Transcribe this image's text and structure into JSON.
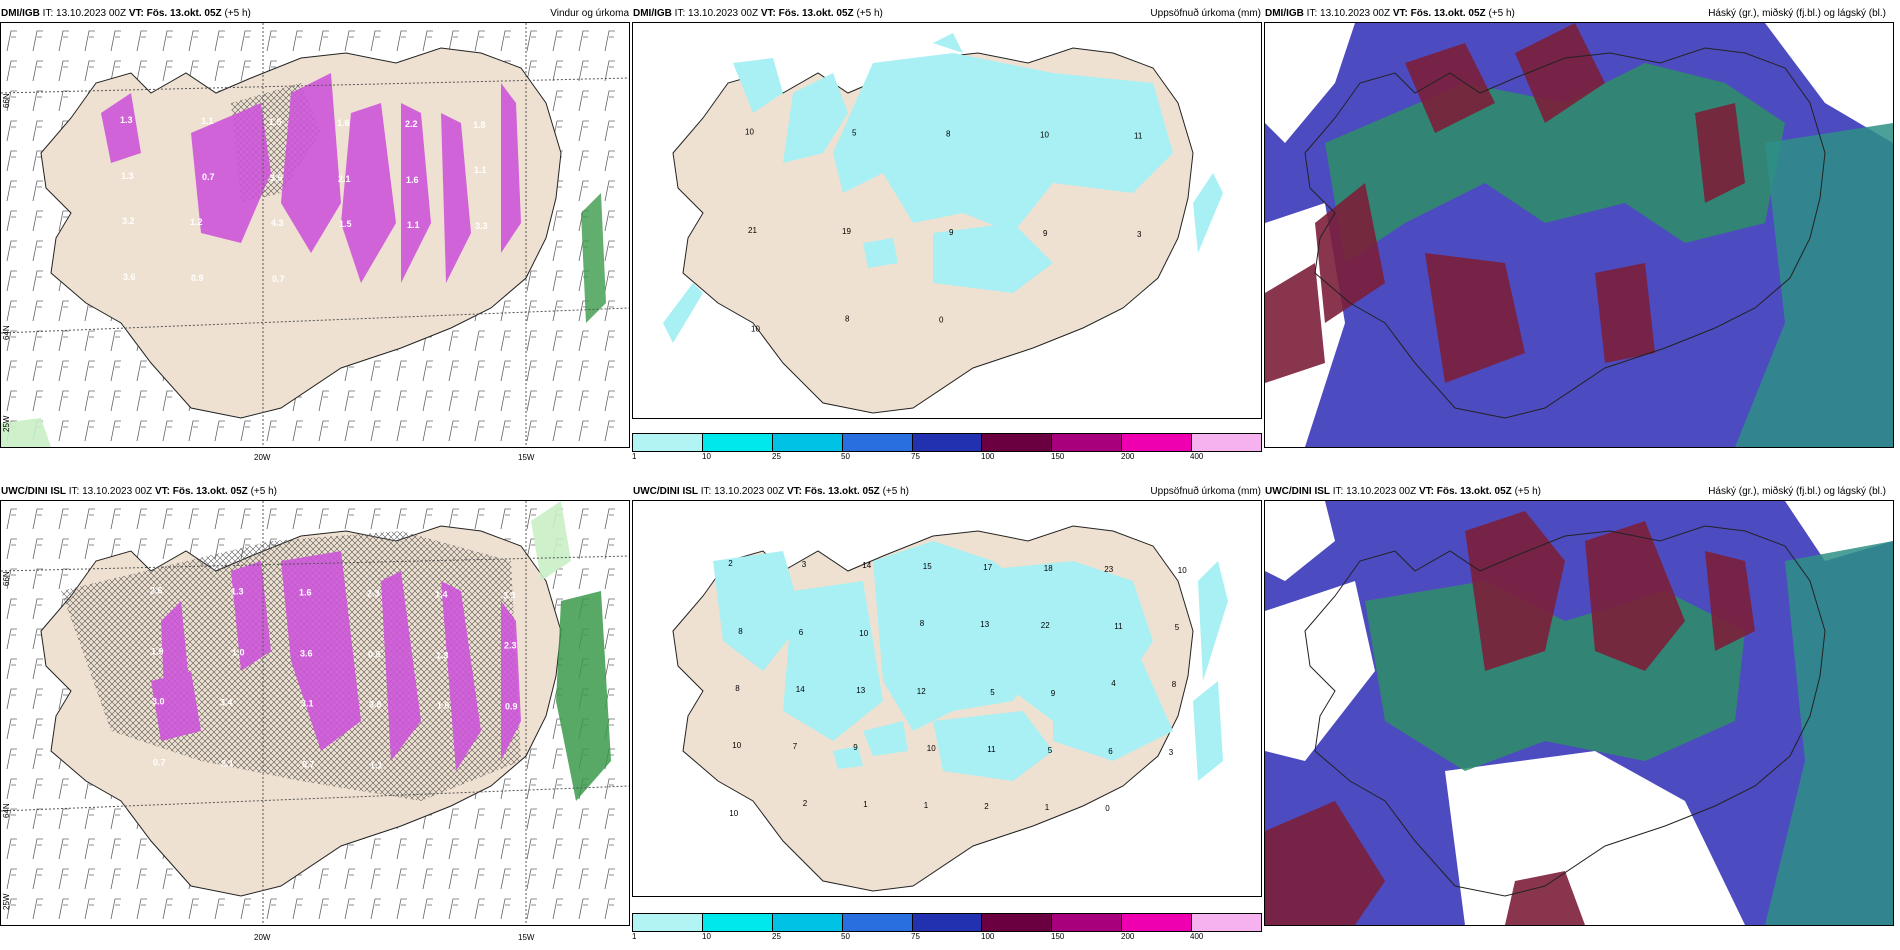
{
  "rows": [
    {
      "source": "DMI/IGB",
      "it_label": "IT:",
      "it_value": "13.10.2023 00Z",
      "vt_label": "VT:",
      "vt_value": "Fös. 13.okt. 05Z",
      "lead": "(+5 h)",
      "titles": {
        "wind": "Vindur og úrkoma",
        "accum": "Uppsöfnuð úrkoma (mm)",
        "cloud": "Háský (gr.), miðský (fj.bl.) og lágský (bl.)"
      },
      "wind_values": [
        "1.3",
        "1.1",
        "1.5",
        "1.6",
        "2.2",
        "1.8",
        "1.3",
        "0.7",
        "3.5",
        "2.1",
        "1.6",
        "1.1",
        "3.2",
        "1.2",
        "4.3",
        "1.5",
        "1.1",
        "3.3",
        "3.6",
        "0.9",
        "0.7"
      ],
      "accum_values": [
        "10",
        "5",
        "8",
        "10",
        "11",
        "21",
        "19",
        "9",
        "9",
        "3",
        "10",
        "8",
        "0"
      ]
    },
    {
      "source": "UWC/DINI ISL",
      "it_label": "IT:",
      "it_value": "13.10.2023 00Z",
      "vt_label": "VT:",
      "vt_value": "Fös. 13.okt. 05Z",
      "lead": "(+5 h)",
      "titles": {
        "wind": "",
        "accum": "Uppsöfnuð úrkoma (mm)",
        "cloud": "Háský (gr.), miðský (fj.bl.) og lágský (bl.)"
      },
      "wind_values": [
        "2.6",
        "1.3",
        "1.6",
        "2.3",
        "1.4",
        "3.3",
        "1.9",
        "1.0",
        "3.6",
        "0.8",
        "1.3",
        "2.3",
        "3.0",
        "3.4",
        "3.1",
        "3.8",
        "1.6",
        "0.9",
        "0.7",
        "2.1",
        "0.7",
        "1.1"
      ],
      "accum_values": [
        "2",
        "3",
        "14",
        "15",
        "17",
        "18",
        "23",
        "10",
        "8",
        "6",
        "10",
        "8",
        "13",
        "22",
        "11",
        "5",
        "8",
        "14",
        "13",
        "12",
        "5",
        "9",
        "4",
        "8",
        "10",
        "7",
        "9",
        "10",
        "11",
        "5",
        "6",
        "3",
        "10",
        "2",
        "1",
        "1",
        "2",
        "1",
        "0"
      ]
    }
  ],
  "axes": {
    "lon_left": "20W",
    "lon_right": "15W",
    "lat_top": "66N",
    "lat_mid": "64N",
    "lat_bottom": "25W"
  },
  "colorbar": {
    "labels": [
      "1",
      "10",
      "25",
      "50",
      "75",
      "100",
      "150",
      "200",
      "400"
    ],
    "colors": [
      "#b2f3f3",
      "#00e8ec",
      "#00c2e4",
      "#2a6fe0",
      "#2131b0",
      "#6a0040",
      "#a8007c",
      "#ee00b0",
      "#f5b2ee"
    ]
  },
  "colors": {
    "land": "#efe1d1",
    "accum_fill": "#a8f0f4",
    "wind_fill": "#cc55d8",
    "cloud_high": "#7b1f3a",
    "cloud_mid": "#2e8f66",
    "cloud_low": "#4d4bc0"
  }
}
